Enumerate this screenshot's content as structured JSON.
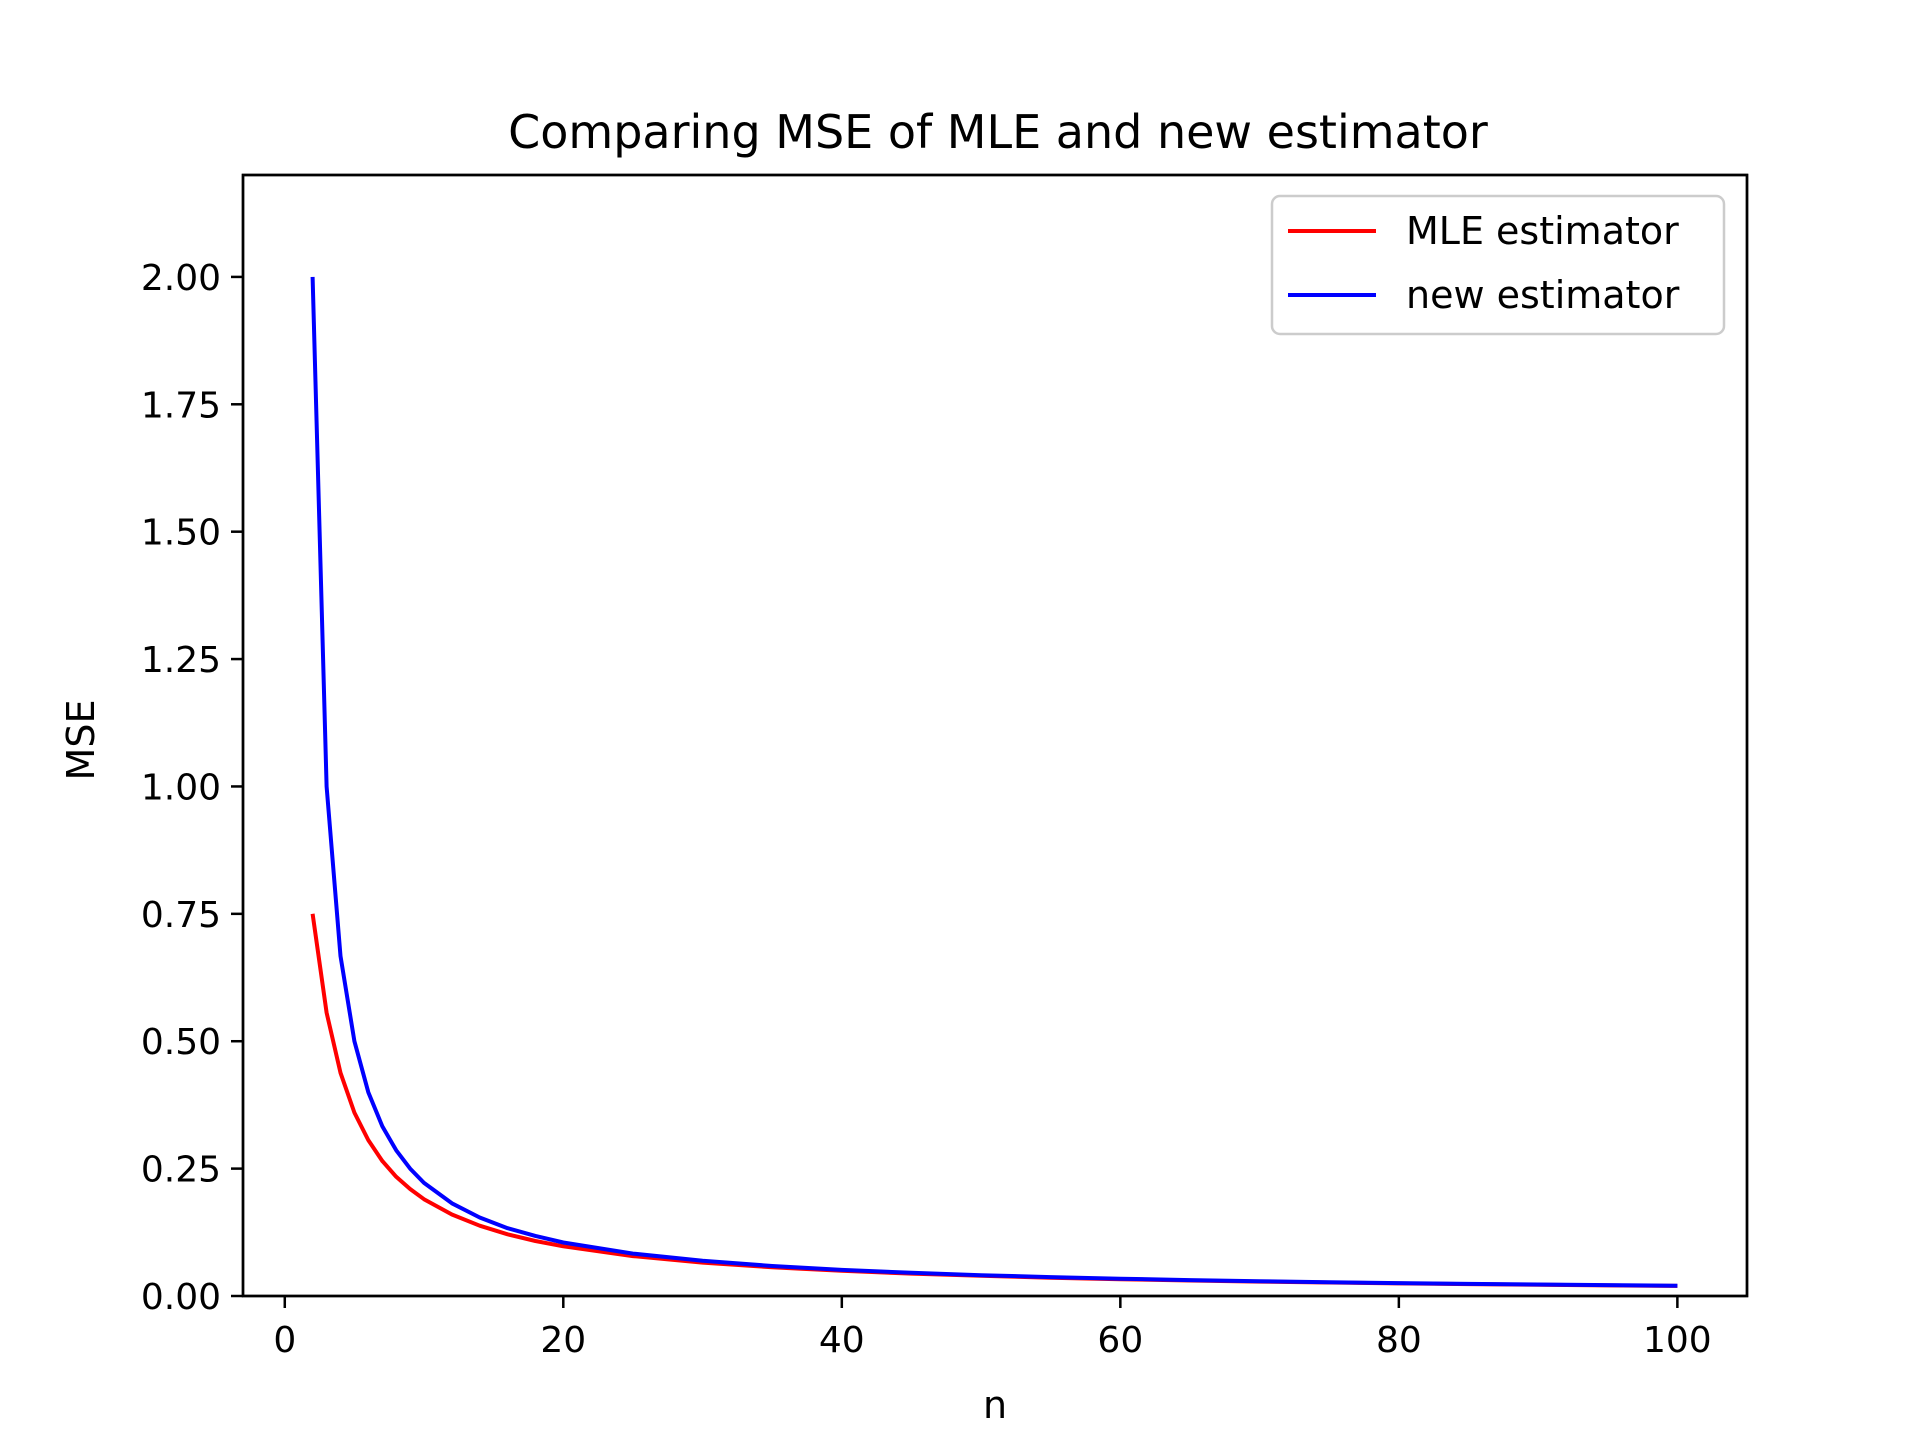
{
  "chart_data": {
    "type": "line",
    "title": "Comparing MSE of MLE and new estimator",
    "xlabel": "n",
    "ylabel": "MSE",
    "xlim": [
      -3,
      105
    ],
    "ylim": [
      0,
      2.2
    ],
    "xticks": [
      0,
      20,
      40,
      60,
      80,
      100
    ],
    "yticks": [
      0,
      0.25,
      0.5,
      0.75,
      1.0,
      1.25,
      1.5,
      1.75,
      2.0
    ],
    "xtick_labels": [
      "0",
      "20",
      "40",
      "60",
      "80",
      "100"
    ],
    "ytick_labels": [
      "0.00",
      "0.25",
      "0.50",
      "0.75",
      "1.00",
      "1.25",
      "1.50",
      "1.75",
      "2.00"
    ],
    "grid": false,
    "legend_position": "top-right",
    "series": [
      {
        "name": "MLE estimator",
        "color": "#ff0000",
        "x": [
          2,
          3,
          4,
          5,
          6,
          7,
          8,
          9,
          10,
          12,
          14,
          16,
          18,
          20,
          25,
          30,
          35,
          40,
          45,
          50,
          55,
          60,
          65,
          70,
          75,
          80,
          85,
          90,
          95,
          100
        ],
        "y": [
          0.75,
          0.556,
          0.438,
          0.36,
          0.306,
          0.265,
          0.234,
          0.21,
          0.19,
          0.16,
          0.138,
          0.121,
          0.108,
          0.0975,
          0.0784,
          0.0656,
          0.0563,
          0.0494,
          0.0439,
          0.0396,
          0.036,
          0.033,
          0.0305,
          0.0283,
          0.0264,
          0.0248,
          0.0233,
          0.022,
          0.0209,
          0.0199
        ]
      },
      {
        "name": "new estimator",
        "color": "#0000ff",
        "x": [
          2,
          3,
          4,
          5,
          6,
          7,
          8,
          9,
          10,
          12,
          14,
          16,
          18,
          20,
          25,
          30,
          35,
          40,
          45,
          50,
          55,
          60,
          65,
          70,
          75,
          80,
          85,
          90,
          95,
          100
        ],
        "y": [
          2.0,
          1.0,
          0.667,
          0.5,
          0.4,
          0.333,
          0.286,
          0.25,
          0.222,
          0.182,
          0.154,
          0.133,
          0.118,
          0.105,
          0.0833,
          0.069,
          0.0588,
          0.0513,
          0.0455,
          0.0408,
          0.037,
          0.0339,
          0.0313,
          0.029,
          0.027,
          0.0253,
          0.0238,
          0.0225,
          0.0213,
          0.0202
        ]
      }
    ]
  }
}
